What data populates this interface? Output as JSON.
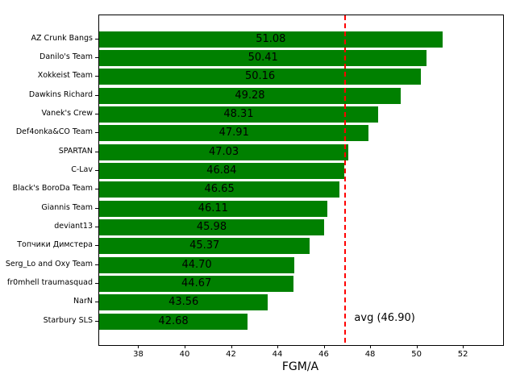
{
  "chart_data": {
    "type": "bar",
    "orientation": "horizontal",
    "title": "",
    "xlabel": "FGM/A",
    "ylabel": "",
    "categories": [
      "AZ Crunk Bangs",
      "Danilo's Team",
      "Xokkeist Team",
      "Dawkins Richard",
      "Vanek's Crew",
      "Def4onka&CO Team",
      "SPARTAN",
      "C-Lav",
      "Black's BoroDa Team",
      "Giannis Team",
      "deviant13",
      "Топчики Димстера",
      "Serg_Lo and Oxy Team",
      "fr0mhell traumasquad",
      "NarN",
      "Starbury SLS"
    ],
    "values": [
      51.08,
      50.41,
      50.16,
      49.28,
      48.31,
      47.91,
      47.03,
      46.84,
      46.65,
      46.11,
      45.98,
      45.37,
      44.7,
      44.67,
      43.56,
      42.68
    ],
    "xticks": [
      38,
      40,
      42,
      44,
      46,
      48,
      50,
      52
    ],
    "xlim": [
      36.28,
      53.7
    ],
    "grid": false,
    "legend": null,
    "bar_color": "#008000",
    "value_label_color": "#000000",
    "avg_line": {
      "value": 46.9,
      "label": "avg (46.90)",
      "color": "#ff0000",
      "style": "dashed"
    }
  }
}
